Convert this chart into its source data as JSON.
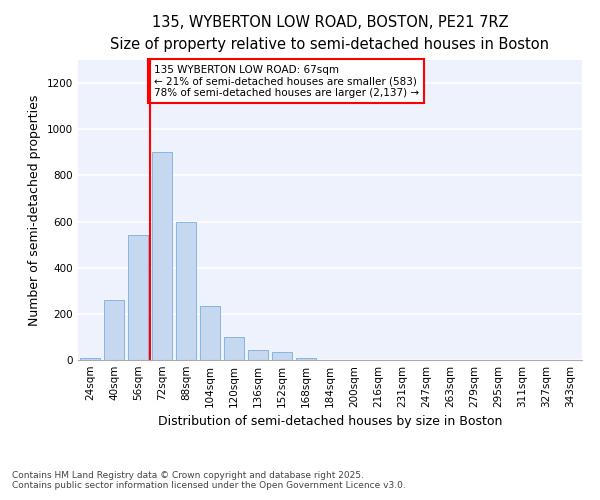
{
  "title_line1": "135, WYBERTON LOW ROAD, BOSTON, PE21 7RZ",
  "title_line2": "Size of property relative to semi-detached houses in Boston",
  "xlabel": "Distribution of semi-detached houses by size in Boston",
  "ylabel": "Number of semi-detached properties",
  "categories": [
    "24sqm",
    "40sqm",
    "56sqm",
    "72sqm",
    "88sqm",
    "104sqm",
    "120sqm",
    "136sqm",
    "152sqm",
    "168sqm",
    "184sqm",
    "200sqm",
    "216sqm",
    "231sqm",
    "247sqm",
    "263sqm",
    "279sqm",
    "295sqm",
    "311sqm",
    "327sqm",
    "343sqm"
  ],
  "values": [
    10,
    260,
    540,
    900,
    600,
    235,
    100,
    45,
    35,
    10,
    0,
    0,
    0,
    0,
    0,
    0,
    0,
    0,
    0,
    0,
    0
  ],
  "bar_color": "#c5d8f0",
  "bar_edge_color": "#7aade0",
  "vline_x": 2.5,
  "vline_color": "red",
  "annotation_text": "135 WYBERTON LOW ROAD: 67sqm\n← 21% of semi-detached houses are smaller (583)\n78% of semi-detached houses are larger (2,137) →",
  "annotation_box_facecolor": "white",
  "annotation_box_edgecolor": "red",
  "ylim": [
    0,
    1300
  ],
  "yticks": [
    0,
    200,
    400,
    600,
    800,
    1000,
    1200
  ],
  "background_color": "#eef2fc",
  "grid_color": "white",
  "footer_text": "Contains HM Land Registry data © Crown copyright and database right 2025.\nContains public sector information licensed under the Open Government Licence v3.0.",
  "title_fontsize": 10.5,
  "subtitle_fontsize": 9,
  "axis_label_fontsize": 9,
  "tick_fontsize": 7.5,
  "footer_fontsize": 6.5,
  "annotation_fontsize": 7.5
}
